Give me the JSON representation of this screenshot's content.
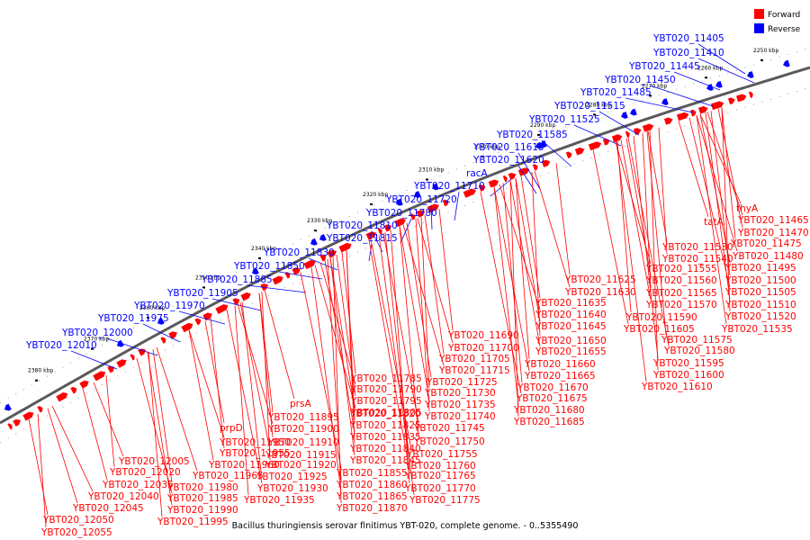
{
  "caption": "Bacillus thuringiensis serovar finitimus YBT-020, complete genome. - 0..5355490",
  "legend": [
    {
      "label": "Forward",
      "color": "#ff0000"
    },
    {
      "label": "Reverse",
      "color": "#0000ff"
    }
  ],
  "colors": {
    "forward": "#ff0000",
    "reverse": "#0000ff",
    "backbone": "#808080"
  },
  "kbp_ticks": [
    "2250 kbp",
    "2260 kbp",
    "2270 kbp",
    "2280 kbp",
    "2290 kbp",
    "2300 kbp",
    "2310 kbp",
    "2320 kbp",
    "2330 kbp",
    "2340 kbp",
    "2350 kbp",
    "2360 kbp",
    "2370 kbp",
    "2380 kbp"
  ],
  "reverse_labels": [
    "YBT020_11405",
    "YBT020_11410",
    "YBT020_11445",
    "YBT020_11450",
    "YBT020_11485",
    "YBT020_11515",
    "YBT020_11525",
    "YBT020_11585",
    "YBT020_11615",
    "YBT020_11620",
    "racA",
    "YBT020_11710",
    "YBT020_11720",
    "YBT020_11780",
    "YBT020_11810",
    "YBT020_11815",
    "YBT020_11830",
    "YBT020_11850",
    "YBT020_11885",
    "YBT020_11905",
    "YBT020_11970",
    "YBT020_11975",
    "YBT020_12000",
    "YBT020_12010"
  ],
  "forward_labels": [
    "thyA",
    "YBT020_11465",
    "tatA",
    "YBT020_11470",
    "YBT020_11530",
    "YBT020_11475",
    "YBT020_11540",
    "YBT020_11480",
    "YBT020_11555",
    "YBT020_11495",
    "YBT020_11560",
    "YBT020_11500",
    "YBT020_11625",
    "YBT020_11565",
    "YBT020_11505",
    "YBT020_11630",
    "YBT020_11570",
    "YBT020_11510",
    "YBT020_11635",
    "YBT020_11590",
    "YBT020_11520",
    "YBT020_11640",
    "YBT020_11605",
    "YBT020_11535",
    "YBT020_11645",
    "YBT020_11575",
    "YBT020_11690",
    "YBT020_11650",
    "YBT020_11580",
    "YBT020_11700",
    "YBT020_11655",
    "YBT020_11595",
    "YBT020_11705",
    "YBT020_11660",
    "YBT020_11600",
    "YBT020_11715",
    "YBT020_11665",
    "YBT020_11610",
    "YBT020_11725",
    "YBT020_11670",
    "YBT020_11785",
    "YBT020_11730",
    "YBT020_11675",
    "YBT020_11790",
    "YBT020_11735",
    "YBT020_11680",
    "YBT020_11795",
    "YBT020_11740",
    "YBT020_11685",
    "YBT020_11805",
    "YBT020_11745",
    "prsA",
    "YBT020_11820",
    "YBT020_11750",
    "YBT020_11895",
    "YBT020_11825",
    "YBT020_11755",
    "YBT020_11900",
    "YBT020_11835",
    "YBT020_11760",
    "prpD",
    "YBT020_11910",
    "YBT020_11840",
    "YBT020_11765",
    "YBT020_11950",
    "YBT020_11915",
    "YBT020_11845",
    "YBT020_11770",
    "YBT020_11955",
    "YBT020_11920",
    "YBT020_11855",
    "YBT020_11775",
    "YBT020_12005",
    "YBT020_11960",
    "YBT020_11925",
    "YBT020_11860",
    "YBT020_12020",
    "YBT020_11965",
    "YBT020_11930",
    "YBT020_11865",
    "YBT020_12035",
    "YBT020_11980",
    "YBT020_11935",
    "YBT020_11870",
    "YBT020_12040",
    "YBT020_11985",
    "YBT020_12045",
    "YBT020_11990",
    "YBT020_12050",
    "YBT020_11995",
    "YBT020_12055"
  ]
}
